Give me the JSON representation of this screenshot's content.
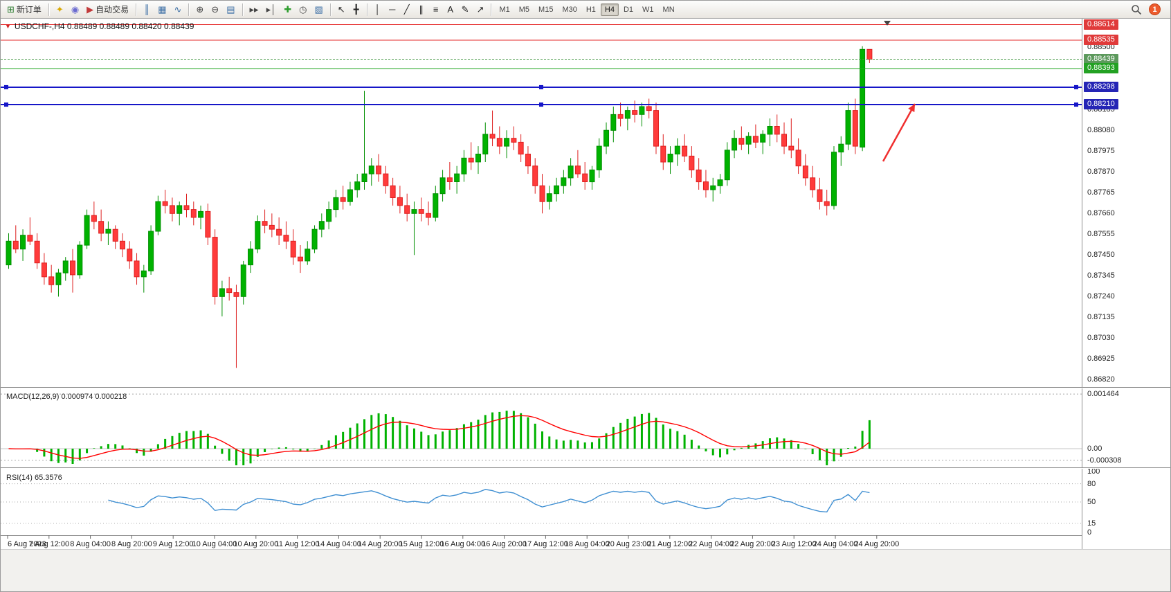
{
  "toolbar": {
    "items": [
      {
        "name": "new-order-button",
        "glyph": "⊞",
        "color": "#2e7d32",
        "label": "新订单"
      },
      {
        "sep": true
      },
      {
        "name": "favorites-button",
        "glyph": "✦",
        "color": "#d9a800"
      },
      {
        "name": "alerts-button",
        "glyph": "◉",
        "color": "#6a6ad0"
      },
      {
        "name": "autotrading-button",
        "glyph": "▶",
        "color": "#c23a3a",
        "label": "自动交易"
      },
      {
        "sep": true
      },
      {
        "name": "bar-chart-button",
        "glyph": "║",
        "color": "#3b6ea5"
      },
      {
        "name": "candlestick-chart-button",
        "glyph": "▦",
        "color": "#3b6ea5"
      },
      {
        "name": "line-chart-button",
        "glyph": "∿",
        "color": "#3b6ea5"
      },
      {
        "sep": true
      },
      {
        "name": "zoom-in-button",
        "glyph": "⊕",
        "color": "#444444"
      },
      {
        "name": "zoom-out-button",
        "glyph": "⊖",
        "color": "#444444"
      },
      {
        "name": "tile-windows-button",
        "glyph": "▤",
        "color": "#3b6ea5"
      },
      {
        "sep": true
      },
      {
        "name": "auto-scroll-button",
        "glyph": "▸▸",
        "color": "#444444"
      },
      {
        "name": "chart-shift-button",
        "glyph": "▸│",
        "color": "#444444"
      },
      {
        "name": "new-chart-button",
        "glyph": "✚",
        "color": "#2e9e2e"
      },
      {
        "name": "periods-button",
        "glyph": "◷",
        "color": "#444444"
      },
      {
        "name": "templates-button",
        "glyph": "▧",
        "color": "#3b6ea5"
      },
      {
        "sep": true
      },
      {
        "name": "cursor-button",
        "glyph": "↖",
        "color": "#222222"
      },
      {
        "name": "crosshair-button",
        "glyph": "╋",
        "color": "#222222"
      },
      {
        "sep": true
      },
      {
        "name": "vertical-line-button",
        "glyph": "│",
        "color": "#222222"
      },
      {
        "name": "horizontal-line-button",
        "glyph": "─",
        "color": "#222222"
      },
      {
        "name": "trendline-button",
        "glyph": "╱",
        "color": "#222222"
      },
      {
        "name": "channel-button",
        "glyph": "∥",
        "color": "#222222"
      },
      {
        "name": "fibonacci-button",
        "glyph": "≡",
        "color": "#222222"
      },
      {
        "name": "text-button",
        "glyph": "A",
        "color": "#222222"
      },
      {
        "name": "label-button",
        "glyph": "✎",
        "color": "#222222"
      },
      {
        "name": "arrows-button",
        "glyph": "↗",
        "color": "#222222"
      },
      {
        "sep": true
      }
    ],
    "timeframes": [
      "M1",
      "M5",
      "M15",
      "M30",
      "H1",
      "H4",
      "D1",
      "W1",
      "MN"
    ],
    "active_timeframe": "H4",
    "notification_count": "1"
  },
  "chart": {
    "header": "USDCHF-,H4  0.88489 0.88489 0.88420 0.88439"
  },
  "chart_data": {
    "type": "candlestick",
    "symbol": "USDCHF-",
    "timeframe": "H4",
    "title": "USDCHF-,H4 0.88489 0.88489 0.88420 0.88439",
    "ohlc": {
      "open": 0.88489,
      "high": 0.88489,
      "low": 0.8842,
      "close": 0.88439
    },
    "ylim": [
      0.8679,
      0.8863
    ],
    "price_ticks": [
      "0.88500",
      "0.88185",
      "0.88080",
      "0.87975",
      "0.87870",
      "0.87765",
      "0.87660",
      "0.87555",
      "0.87450",
      "0.87345",
      "0.87240",
      "0.87135",
      "0.87030",
      "0.86925",
      "0.86820"
    ],
    "levels": [
      {
        "value": 0.88614,
        "label": "0.88614",
        "color": "#e62e2e",
        "width": 1,
        "dash": "",
        "flag_bg": "#e03a3a"
      },
      {
        "value": 0.88535,
        "label": "0.88535",
        "color": "#e62e2e",
        "width": 1,
        "dash": "",
        "flag_bg": "#e03a3a"
      },
      {
        "value": 0.88439,
        "label": "0.88439",
        "color": "#4a9a4a",
        "width": 1,
        "dash": "3,2",
        "flag_bg": "#5c995c"
      },
      {
        "value": 0.88393,
        "label": "0.88393",
        "color": "#1fa51f",
        "width": 1,
        "dash": "",
        "flag_bg": "#23a123"
      },
      {
        "value": 0.88298,
        "label": "0.88298",
        "color": "#1616c8",
        "width": 2,
        "dash": "",
        "flag_bg": "#2525b5",
        "handles": true
      },
      {
        "value": 0.8821,
        "label": "0.88210",
        "color": "#1616c8",
        "width": 2,
        "dash": "",
        "flag_bg": "#2525b5",
        "handles": true
      }
    ],
    "up_color": "#00b200",
    "down_color": "#ff3b3b",
    "up_stroke": "#008f00",
    "down_stroke": "#de2020",
    "candles": [
      [
        0.874,
        0.8756,
        0.8738,
        0.8752
      ],
      [
        0.8752,
        0.876,
        0.8746,
        0.8748
      ],
      [
        0.8748,
        0.8758,
        0.8742,
        0.8755
      ],
      [
        0.8755,
        0.8764,
        0.875,
        0.8752
      ],
      [
        0.8752,
        0.8756,
        0.8738,
        0.8741
      ],
      [
        0.8741,
        0.8746,
        0.873,
        0.8734
      ],
      [
        0.8734,
        0.874,
        0.8726,
        0.873
      ],
      [
        0.873,
        0.8738,
        0.8724,
        0.8736
      ],
      [
        0.8736,
        0.8744,
        0.8732,
        0.8742
      ],
      [
        0.8742,
        0.8748,
        0.8726,
        0.8735
      ],
      [
        0.8735,
        0.8752,
        0.8733,
        0.875
      ],
      [
        0.875,
        0.8768,
        0.8748,
        0.8765
      ],
      [
        0.8765,
        0.8772,
        0.8758,
        0.8762
      ],
      [
        0.8762,
        0.8768,
        0.8752,
        0.8756
      ],
      [
        0.8756,
        0.8762,
        0.875,
        0.8758
      ],
      [
        0.8758,
        0.876,
        0.8748,
        0.8752
      ],
      [
        0.8752,
        0.8756,
        0.8744,
        0.8748
      ],
      [
        0.8748,
        0.8752,
        0.8738,
        0.8742
      ],
      [
        0.8742,
        0.8746,
        0.873,
        0.8734
      ],
      [
        0.8734,
        0.874,
        0.8726,
        0.8737
      ],
      [
        0.8737,
        0.876,
        0.8735,
        0.8757
      ],
      [
        0.8757,
        0.8775,
        0.8755,
        0.8772
      ],
      [
        0.8772,
        0.8778,
        0.8766,
        0.877
      ],
      [
        0.877,
        0.8774,
        0.8762,
        0.8766
      ],
      [
        0.8766,
        0.8772,
        0.876,
        0.877
      ],
      [
        0.877,
        0.8776,
        0.8764,
        0.8768
      ],
      [
        0.8768,
        0.8772,
        0.876,
        0.8764
      ],
      [
        0.8764,
        0.877,
        0.8758,
        0.8767
      ],
      [
        0.8767,
        0.8771,
        0.875,
        0.8754
      ],
      [
        0.8754,
        0.8758,
        0.872,
        0.8724
      ],
      [
        0.8724,
        0.8732,
        0.8714,
        0.8728
      ],
      [
        0.8728,
        0.8734,
        0.8722,
        0.8726
      ],
      [
        0.8726,
        0.873,
        0.8688,
        0.8724
      ],
      [
        0.8724,
        0.8742,
        0.872,
        0.874
      ],
      [
        0.874,
        0.8752,
        0.8736,
        0.8748
      ],
      [
        0.8748,
        0.8765,
        0.8746,
        0.8762
      ],
      [
        0.8762,
        0.8768,
        0.8756,
        0.876
      ],
      [
        0.876,
        0.8766,
        0.8754,
        0.8758
      ],
      [
        0.8758,
        0.8764,
        0.875,
        0.8755
      ],
      [
        0.8755,
        0.8762,
        0.8748,
        0.8752
      ],
      [
        0.8752,
        0.8758,
        0.874,
        0.8744
      ],
      [
        0.8744,
        0.875,
        0.8736,
        0.8742
      ],
      [
        0.8742,
        0.8752,
        0.874,
        0.8748
      ],
      [
        0.8748,
        0.876,
        0.8746,
        0.8758
      ],
      [
        0.8758,
        0.8766,
        0.8754,
        0.8762
      ],
      [
        0.8762,
        0.8772,
        0.8758,
        0.8768
      ],
      [
        0.8768,
        0.8778,
        0.8764,
        0.8774
      ],
      [
        0.8774,
        0.878,
        0.8768,
        0.8772
      ],
      [
        0.8772,
        0.8782,
        0.877,
        0.8778
      ],
      [
        0.8778,
        0.8786,
        0.8774,
        0.8782
      ],
      [
        0.8782,
        0.8828,
        0.8778,
        0.8786
      ],
      [
        0.8786,
        0.8794,
        0.878,
        0.879
      ],
      [
        0.879,
        0.8796,
        0.8782,
        0.8786
      ],
      [
        0.8786,
        0.879,
        0.8776,
        0.878
      ],
      [
        0.878,
        0.8784,
        0.877,
        0.8774
      ],
      [
        0.8774,
        0.878,
        0.8766,
        0.877
      ],
      [
        0.877,
        0.8776,
        0.8762,
        0.8766
      ],
      [
        0.8766,
        0.8772,
        0.8745,
        0.8768
      ],
      [
        0.8768,
        0.8774,
        0.8762,
        0.8766
      ],
      [
        0.8766,
        0.8772,
        0.876,
        0.8764
      ],
      [
        0.8764,
        0.878,
        0.8762,
        0.8776
      ],
      [
        0.8776,
        0.8788,
        0.8772,
        0.8784
      ],
      [
        0.8784,
        0.8792,
        0.8778,
        0.8782
      ],
      [
        0.8782,
        0.879,
        0.8776,
        0.8786
      ],
      [
        0.8786,
        0.8798,
        0.8782,
        0.8794
      ],
      [
        0.8794,
        0.8802,
        0.8788,
        0.8792
      ],
      [
        0.8792,
        0.88,
        0.8786,
        0.8796
      ],
      [
        0.8796,
        0.8812,
        0.8792,
        0.8806
      ],
      [
        0.8806,
        0.8818,
        0.88,
        0.8804
      ],
      [
        0.8804,
        0.881,
        0.8796,
        0.88
      ],
      [
        0.88,
        0.8808,
        0.8794,
        0.8804
      ],
      [
        0.8804,
        0.881,
        0.8798,
        0.8802
      ],
      [
        0.8802,
        0.8806,
        0.8792,
        0.8796
      ],
      [
        0.8796,
        0.88,
        0.8786,
        0.879
      ],
      [
        0.879,
        0.8794,
        0.8776,
        0.878
      ],
      [
        0.878,
        0.8786,
        0.8766,
        0.8772
      ],
      [
        0.8772,
        0.878,
        0.8768,
        0.8776
      ],
      [
        0.8776,
        0.8784,
        0.8772,
        0.878
      ],
      [
        0.878,
        0.8788,
        0.8776,
        0.8784
      ],
      [
        0.8784,
        0.8794,
        0.878,
        0.879
      ],
      [
        0.879,
        0.8798,
        0.8784,
        0.8786
      ],
      [
        0.8786,
        0.8792,
        0.8778,
        0.8782
      ],
      [
        0.8782,
        0.879,
        0.8778,
        0.8788
      ],
      [
        0.8788,
        0.8804,
        0.8784,
        0.88
      ],
      [
        0.88,
        0.8812,
        0.8796,
        0.8808
      ],
      [
        0.8808,
        0.882,
        0.8802,
        0.8816
      ],
      [
        0.8816,
        0.8822,
        0.881,
        0.8814
      ],
      [
        0.8814,
        0.882,
        0.8808,
        0.8818
      ],
      [
        0.8818,
        0.8823,
        0.8812,
        0.8816
      ],
      [
        0.8816,
        0.8822,
        0.881,
        0.882
      ],
      [
        0.882,
        0.8824,
        0.8814,
        0.8818
      ],
      [
        0.8818,
        0.8822,
        0.8796,
        0.88
      ],
      [
        0.88,
        0.8806,
        0.8788,
        0.8792
      ],
      [
        0.8792,
        0.88,
        0.8786,
        0.8796
      ],
      [
        0.8796,
        0.8804,
        0.879,
        0.88
      ],
      [
        0.88,
        0.8806,
        0.8792,
        0.8795
      ],
      [
        0.8795,
        0.88,
        0.8784,
        0.8788
      ],
      [
        0.8788,
        0.8794,
        0.8778,
        0.8782
      ],
      [
        0.8782,
        0.8788,
        0.8774,
        0.8778
      ],
      [
        0.8778,
        0.8784,
        0.8772,
        0.878
      ],
      [
        0.878,
        0.8786,
        0.8776,
        0.8783
      ],
      [
        0.8783,
        0.8802,
        0.878,
        0.8798
      ],
      [
        0.8798,
        0.8808,
        0.8794,
        0.8804
      ],
      [
        0.8804,
        0.881,
        0.8798,
        0.8801
      ],
      [
        0.8801,
        0.8807,
        0.8796,
        0.8805
      ],
      [
        0.8805,
        0.8811,
        0.8799,
        0.8802
      ],
      [
        0.8802,
        0.8808,
        0.8796,
        0.8806
      ],
      [
        0.8806,
        0.8814,
        0.88,
        0.881
      ],
      [
        0.881,
        0.8816,
        0.8802,
        0.8806
      ],
      [
        0.8806,
        0.8812,
        0.8796,
        0.88
      ],
      [
        0.88,
        0.8814,
        0.8794,
        0.8798
      ],
      [
        0.8798,
        0.8804,
        0.8786,
        0.879
      ],
      [
        0.879,
        0.8796,
        0.878,
        0.8784
      ],
      [
        0.8784,
        0.879,
        0.8774,
        0.8778
      ],
      [
        0.8778,
        0.8784,
        0.8768,
        0.8772
      ],
      [
        0.8772,
        0.8778,
        0.8765,
        0.877
      ],
      [
        0.877,
        0.88,
        0.8768,
        0.8797
      ],
      [
        0.8797,
        0.8805,
        0.879,
        0.8801
      ],
      [
        0.8801,
        0.8822,
        0.8798,
        0.8818
      ],
      [
        0.8818,
        0.8824,
        0.8796,
        0.88
      ],
      [
        0.87995,
        0.88505,
        0.87975,
        0.88489
      ],
      [
        0.88489,
        0.88489,
        0.8842,
        0.88439
      ]
    ],
    "x_labels": [
      "6 Aug 2023",
      "7 Aug 12:00",
      "8 Aug 04:00",
      "8 Aug 20:00",
      "9 Aug 12:00",
      "10 Aug 04:00",
      "10 Aug 20:00",
      "11 Aug 12:00",
      "14 Aug 04:00",
      "14 Aug 20:00",
      "15 Aug 12:00",
      "16 Aug 04:00",
      "16 Aug 20:00",
      "17 Aug 12:00",
      "18 Aug 04:00",
      "20 Aug 23:00",
      "21 Aug 12:00",
      "22 Aug 04:00",
      "22 Aug 20:00",
      "23 Aug 12:00",
      "24 Aug 04:00",
      "24 Aug 20:00"
    ],
    "indicators": {
      "macd": {
        "label": "MACD(12,26,9) 0.000974 0.000218",
        "fast": 12,
        "slow": 26,
        "signal": 9,
        "axis_labels": [
          "0.001464",
          "0.00",
          "-0.000308"
        ],
        "level_lines": [
          0.001464,
          -0.000308
        ],
        "histogram_color": "#00b200",
        "signal_color": "#ff0000"
      },
      "rsi": {
        "label": "RSI(14) 65.3576",
        "period": 14,
        "axis_labels": [
          "100",
          "80",
          "50",
          "15",
          "0"
        ],
        "level_lines": [
          80,
          50,
          15
        ],
        "line_color": "#3f8fd2"
      }
    },
    "annotations": {
      "arrow": {
        "from": [
          1275,
          206
        ],
        "to": [
          1321,
          123
        ],
        "color": "#f02f2f"
      }
    },
    "shift_marker_x": 1281
  }
}
